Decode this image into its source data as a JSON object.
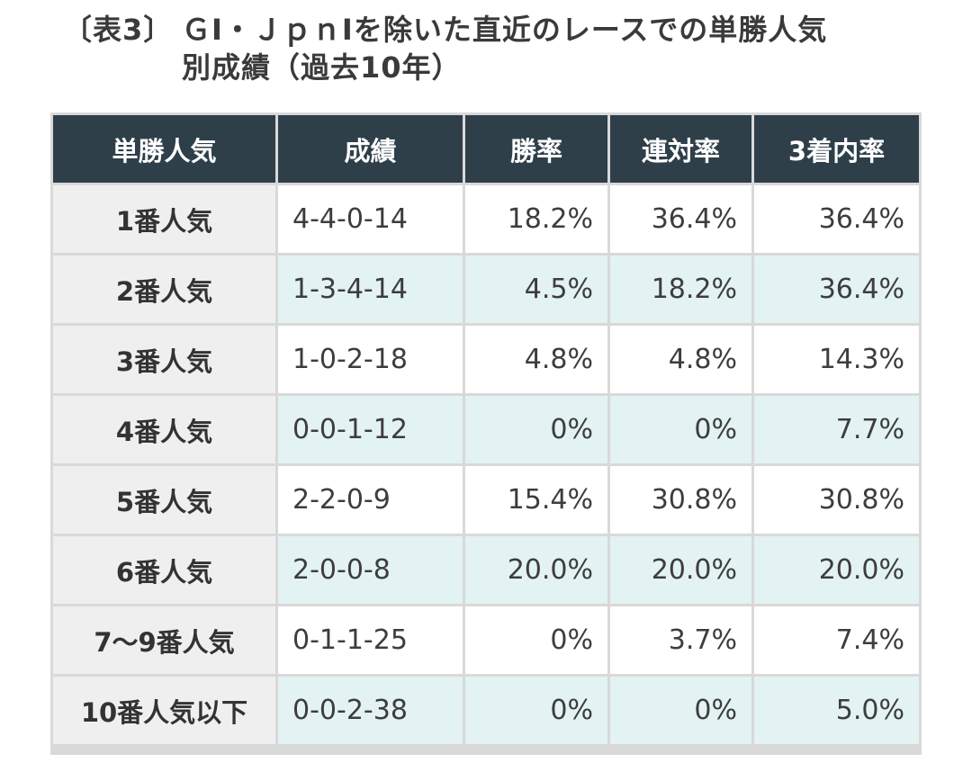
{
  "title": {
    "prefix": "〔表3〕",
    "line1": "ＧⅠ・ＪｐｎⅠを除いた直近のレースでの単勝人気",
    "line2": "別成績（過去10年）"
  },
  "table": {
    "headers": [
      "単勝人気",
      "成績",
      "勝率",
      "連対率",
      "3着内率"
    ],
    "rows": [
      {
        "label": "1番人気",
        "record": "4-4-0-14",
        "win": "18.2%",
        "place2": "36.4%",
        "place3": "36.4%"
      },
      {
        "label": "2番人気",
        "record": "1-3-4-14",
        "win": "4.5%",
        "place2": "18.2%",
        "place3": "36.4%"
      },
      {
        "label": "3番人気",
        "record": "1-0-2-18",
        "win": "4.8%",
        "place2": "4.8%",
        "place3": "14.3%"
      },
      {
        "label": "4番人気",
        "record": "0-0-1-12",
        "win": "0%",
        "place2": "0%",
        "place3": "7.7%"
      },
      {
        "label": "5番人気",
        "record": "2-2-0-9",
        "win": "15.4%",
        "place2": "30.8%",
        "place3": "30.8%"
      },
      {
        "label": "6番人気",
        "record": "2-0-0-8",
        "win": "20.0%",
        "place2": "20.0%",
        "place3": "20.0%"
      },
      {
        "label": "7～9番人気",
        "record": "0-1-1-25",
        "win": "0%",
        "place2": "3.7%",
        "place3": "7.4%"
      },
      {
        "label": "10番人気以下",
        "record": "0-0-2-38",
        "win": "0%",
        "place2": "0%",
        "place3": "5.0%"
      }
    ]
  },
  "colors": {
    "header_bg": "#2f3f49",
    "label_bg": "#efefef",
    "alt_row_bg": "#e3f2f2",
    "grid": "#d9d9d9"
  }
}
